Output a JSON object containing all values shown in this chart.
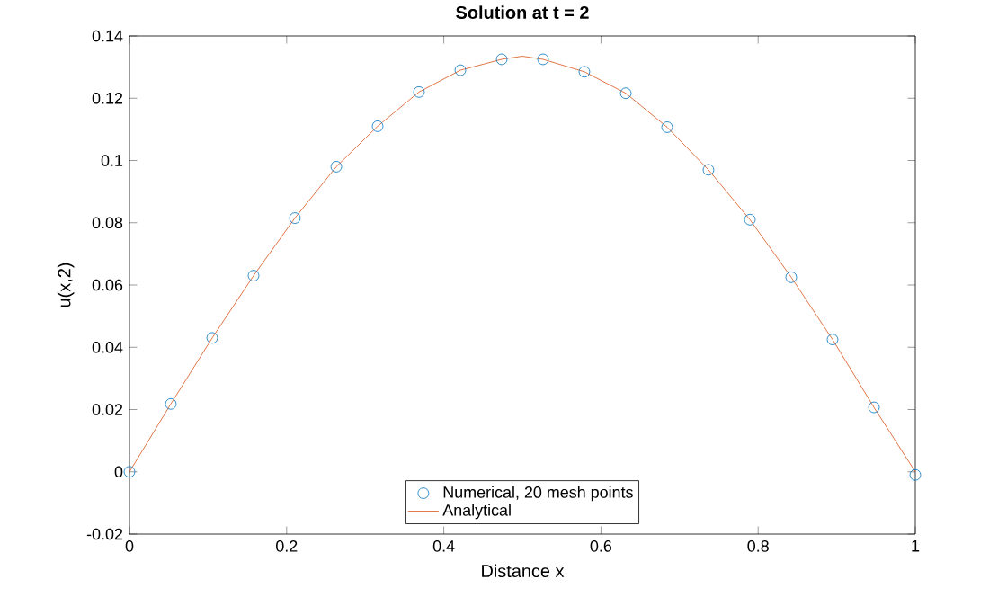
{
  "chart_data": {
    "type": "scatter",
    "title": "Solution at t = 2",
    "xlabel": "Distance x",
    "ylabel": "u(x,2)",
    "xlim": [
      0,
      1
    ],
    "ylim": [
      -0.02,
      0.14
    ],
    "xticks": [
      0,
      0.2,
      0.4,
      0.6,
      0.8,
      1
    ],
    "yticks": [
      -0.02,
      0,
      0.02,
      0.04,
      0.06,
      0.08,
      0.1,
      0.12,
      0.14
    ],
    "legend": "bottom",
    "grid": false,
    "series": [
      {
        "name": "Numerical, 20 mesh points",
        "marker": "circle",
        "color": "#0072bd",
        "x": [
          0,
          0.0526,
          0.1053,
          0.1579,
          0.2105,
          0.2632,
          0.3158,
          0.3684,
          0.4211,
          0.4737,
          0.5263,
          0.5789,
          0.6316,
          0.6842,
          0.7368,
          0.7895,
          0.8421,
          0.8947,
          0.9474,
          1
        ],
        "values": [
          0,
          0.0218,
          0.043,
          0.063,
          0.0815,
          0.098,
          0.111,
          0.122,
          0.129,
          0.1325,
          0.1325,
          0.1285,
          0.1216,
          0.1107,
          0.097,
          0.081,
          0.0625,
          0.0425,
          0.0207,
          -0.001
        ]
      },
      {
        "name": "Analytical",
        "type": "line",
        "marker": "none",
        "line_style": "solid",
        "color": "#d95319",
        "x": [
          0,
          0.0526,
          0.1053,
          0.1579,
          0.2105,
          0.2632,
          0.3158,
          0.3684,
          0.4211,
          0.4737,
          0.5,
          0.5263,
          0.5789,
          0.6316,
          0.6842,
          0.7368,
          0.7895,
          0.8421,
          0.8947,
          0.9474,
          1
        ],
        "values": [
          0,
          0.0218,
          0.043,
          0.063,
          0.0815,
          0.098,
          0.111,
          0.122,
          0.129,
          0.1325,
          0.1335,
          0.1325,
          0.1285,
          0.1216,
          0.1107,
          0.097,
          0.081,
          0.0625,
          0.0425,
          0.0207,
          0
        ]
      }
    ]
  }
}
